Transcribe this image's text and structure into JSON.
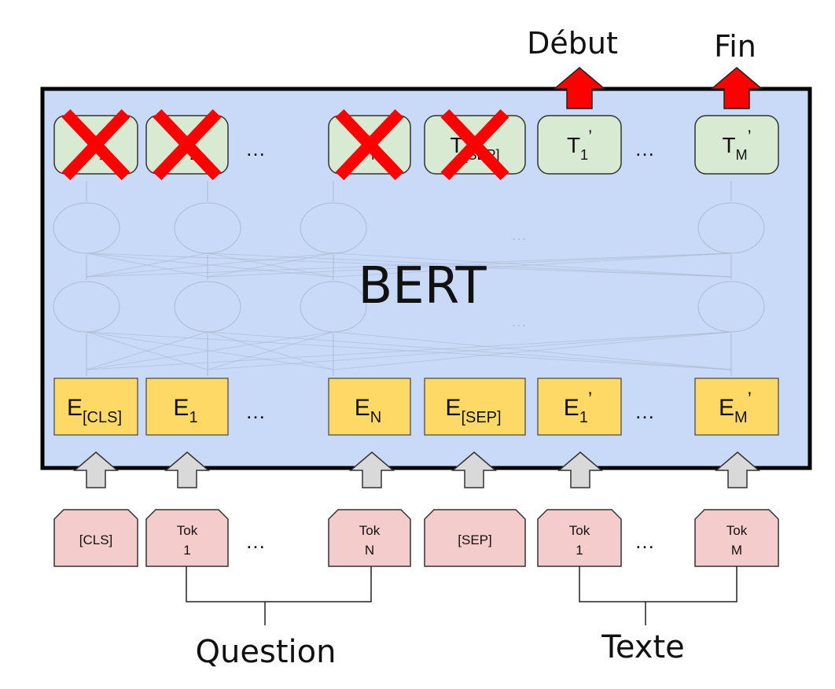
{
  "colors": {
    "bert_box_fill": "#c9daf8",
    "bert_box_stroke": "#000000",
    "output_fill": "#d9ead3",
    "embedding_fill": "#ffd966",
    "token_fill": "#f4cccc",
    "up_arrow_fill": "#d9d9d9",
    "red_mark": "#ff0000",
    "faded_network": "#a8b6cc"
  },
  "bert_label": "BERT",
  "top_labels": {
    "start": "Début",
    "end": "Fin"
  },
  "ellipsis": "…",
  "outputs": [
    {
      "name": "T",
      "sub": "1",
      "crossed": true
    },
    {
      "name": "T",
      "sub": "2",
      "crossed": true
    },
    {
      "name": "",
      "sub": "",
      "crossed": false,
      "ellipsis": true
    },
    {
      "name": "T",
      "sub": "N",
      "crossed": true
    },
    {
      "name": "T",
      "sub": "[SEP]",
      "crossed": true
    },
    {
      "name": "T",
      "sub": "1",
      "prime": "’",
      "crossed": false
    },
    {
      "name": "",
      "sub": "",
      "crossed": false,
      "ellipsis": true
    },
    {
      "name": "T",
      "sub": "M",
      "prime": "’",
      "crossed": false
    }
  ],
  "embeddings": [
    {
      "name": "E",
      "sub": "[CLS]"
    },
    {
      "name": "E",
      "sub": "1"
    },
    {
      "ellipsis": true
    },
    {
      "name": "E",
      "sub": "N"
    },
    {
      "name": "E",
      "sub": "[SEP]"
    },
    {
      "name": "E",
      "sub": "1",
      "prime": "’"
    },
    {
      "ellipsis": true
    },
    {
      "name": "E",
      "sub": "M",
      "prime": "’"
    }
  ],
  "tokens": [
    {
      "line1": "[CLS]",
      "line2": ""
    },
    {
      "line1": "Tok",
      "line2": "1"
    },
    {
      "ellipsis": true
    },
    {
      "line1": "Tok",
      "line2": "N"
    },
    {
      "line1": "[SEP]",
      "line2": ""
    },
    {
      "line1": "Tok",
      "line2": "1"
    },
    {
      "ellipsis": true
    },
    {
      "line1": "Tok",
      "line2": "M"
    }
  ],
  "group_labels": {
    "question": "Question",
    "context": "Texte"
  }
}
